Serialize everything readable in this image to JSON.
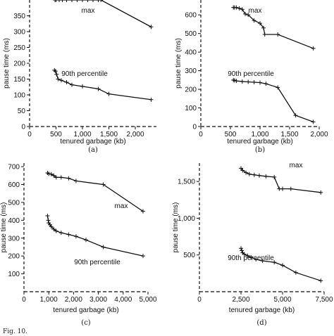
{
  "chart_data": [
    {
      "panel": "(a)",
      "type": "line",
      "xlabel": "tenured garbage (kb)",
      "ylabel": "pause time (ms)",
      "xlim": [
        0,
        2400
      ],
      "ylim": [
        0,
        400
      ],
      "xticks": [
        "0",
        "500",
        "1,000",
        "1,500",
        "2,000"
      ],
      "yticks": [
        "0",
        "50",
        "100",
        "150",
        "200",
        "250",
        "300",
        "350"
      ],
      "series": [
        {
          "name": "max",
          "x": [
            480,
            500,
            560,
            620,
            700,
            800,
            900,
            1000,
            1100,
            1200,
            1300,
            1350,
            2300
          ],
          "y": [
            400,
            400,
            400,
            400,
            400,
            400,
            400,
            400,
            400,
            400,
            400,
            400,
            315
          ]
        },
        {
          "name": "90th percentile",
          "x": [
            470,
            490,
            510,
            540,
            600,
            700,
            800,
            1000,
            1300,
            1500,
            2300
          ],
          "y": [
            178,
            175,
            165,
            150,
            146,
            140,
            132,
            127,
            119,
            103,
            85
          ]
        }
      ]
    },
    {
      "panel": "(b)",
      "type": "line",
      "xlabel": "tenured garbage (kb)",
      "ylabel": "pause time (ms)",
      "xlim": [
        0,
        2000
      ],
      "ylim": [
        0,
        680
      ],
      "xticks": [
        "0",
        "500",
        "1,000",
        "1,500",
        "2,000"
      ],
      "yticks": [
        "0",
        "100",
        "200",
        "300",
        "400",
        "500",
        "600"
      ],
      "series": [
        {
          "name": "max",
          "x": [
            550,
            570,
            600,
            650,
            700,
            750,
            800,
            900,
            1000,
            1060,
            1080,
            1300,
            1900
          ],
          "y": [
            640,
            640,
            640,
            635,
            630,
            605,
            600,
            570,
            555,
            530,
            495,
            495,
            420
          ]
        },
        {
          "name": "90th percentile",
          "x": [
            550,
            570,
            600,
            700,
            800,
            900,
            1000,
            1100,
            1300,
            1600,
            1900
          ],
          "y": [
            250,
            248,
            245,
            242,
            240,
            238,
            236,
            230,
            210,
            60,
            25
          ]
        }
      ]
    },
    {
      "panel": "(c)",
      "type": "line",
      "xlabel": "tenured garbage (kb)",
      "ylabel": "pause time (ms)",
      "xlim": [
        0,
        5000
      ],
      "ylim": [
        0,
        720
      ],
      "xticks": [
        "0",
        "1,000",
        "2,000",
        "3,000",
        "4,000",
        "5,000"
      ],
      "yticks": [
        "100",
        "200",
        "300",
        "400",
        "500",
        "600",
        "700"
      ],
      "series": [
        {
          "name": "max",
          "x": [
            950,
            1000,
            1100,
            1200,
            1300,
            1500,
            1800,
            2100,
            3200,
            4800
          ],
          "y": [
            665,
            660,
            658,
            650,
            640,
            640,
            635,
            620,
            600,
            450
          ]
        },
        {
          "name": "90th percentile",
          "x": [
            950,
            980,
            1000,
            1050,
            1100,
            1200,
            1300,
            1500,
            1800,
            2100,
            2500,
            3200,
            4800
          ],
          "y": [
            425,
            400,
            385,
            375,
            365,
            350,
            340,
            330,
            320,
            310,
            290,
            250,
            200
          ]
        }
      ]
    },
    {
      "panel": "(d)",
      "type": "line",
      "xlabel": "tenured garbage (kb)",
      "ylabel": "pause time (ms)",
      "xlim": [
        0,
        7500
      ],
      "ylim": [
        0,
        1750
      ],
      "xticks": [
        "0",
        "2,500",
        "5,000",
        "7,500"
      ],
      "yticks": [
        "500",
        "1,000",
        "1,500"
      ],
      "series": [
        {
          "name": "max",
          "x": [
            2500,
            2600,
            2800,
            3000,
            3300,
            3600,
            4000,
            4500,
            4800,
            5000,
            5500,
            7300
          ],
          "y": [
            1680,
            1650,
            1620,
            1600,
            1590,
            1580,
            1570,
            1560,
            1400,
            1400,
            1400,
            1350
          ]
        },
        {
          "name": "90th percentile",
          "x": [
            2500,
            2550,
            2600,
            2700,
            2900,
            3100,
            3400,
            3800,
            4500,
            5000,
            5800,
            7300
          ],
          "y": [
            590,
            560,
            530,
            510,
            490,
            470,
            440,
            420,
            400,
            360,
            260,
            150
          ]
        }
      ]
    }
  ],
  "caption": "Fig. 10."
}
